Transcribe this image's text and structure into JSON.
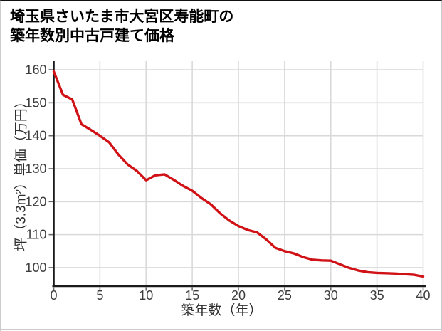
{
  "page": {
    "title_line1": "埼玉県さいたま市大宮区寿能町の",
    "title_line2": "築年数別中古戸建て価格"
  },
  "chart_data": {
    "type": "line",
    "title": "埼玉県さいたま市大宮区寿能町の築年数別中古戸建て価格",
    "xlabel": "築年数（年）",
    "ylabel": "坪（3.3m²）単価（万円）",
    "x": [
      0,
      1,
      2,
      3,
      4,
      5,
      6,
      7,
      8,
      9,
      10,
      11,
      12,
      13,
      14,
      15,
      16,
      17,
      18,
      19,
      20,
      21,
      22,
      23,
      24,
      25,
      26,
      27,
      28,
      29,
      30,
      31,
      32,
      33,
      34,
      35,
      36,
      37,
      38,
      39,
      40
    ],
    "values": [
      159.5,
      152.4,
      151.0,
      143.5,
      141.8,
      140.0,
      138.0,
      134.3,
      131.3,
      129.3,
      126.5,
      128.0,
      128.3,
      126.6,
      124.8,
      123.3,
      121.1,
      119.2,
      116.5,
      114.3,
      112.6,
      111.4,
      110.7,
      108.6,
      106.0,
      105.0,
      104.3,
      103.2,
      102.4,
      102.2,
      102.1,
      101.0,
      99.9,
      99.1,
      98.6,
      98.4,
      98.3,
      98.2,
      98.0,
      97.8,
      97.3
    ],
    "x_ticks": [
      0,
      5,
      10,
      15,
      20,
      25,
      30,
      35,
      40
    ],
    "y_ticks": [
      100,
      110,
      120,
      130,
      140,
      150,
      160
    ],
    "xlim": [
      0,
      40
    ],
    "ylim": [
      94.7,
      162.6
    ],
    "grid": true,
    "legend": "none",
    "line_color": "#d01217",
    "grid_color": "#d9d9d9",
    "axis_color": "#1a1a1a",
    "tick_color": "#6a6a6a",
    "tick_label_color": "#3d3d3d"
  }
}
